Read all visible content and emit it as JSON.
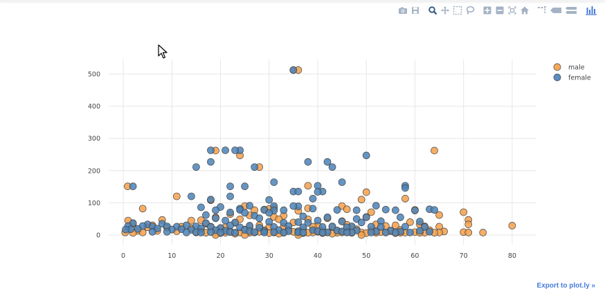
{
  "modebar": {
    "buttons": [
      {
        "icon": "camera-icon",
        "title": "Download plot as a png"
      },
      {
        "icon": "save-icon",
        "title": "Save and edit plot in cloud"
      },
      {
        "icon": "zoom-icon",
        "title": "Zoom"
      },
      {
        "icon": "pan-icon",
        "title": "Pan"
      },
      {
        "icon": "box-select-icon",
        "title": "Box Select"
      },
      {
        "icon": "lasso-select-icon",
        "title": "Lasso Select"
      },
      {
        "icon": "zoom-in-icon",
        "title": "Zoom in"
      },
      {
        "icon": "zoom-out-icon",
        "title": "Zoom out"
      },
      {
        "icon": "autoscale-icon",
        "title": "Autoscale"
      },
      {
        "icon": "home-icon",
        "title": "Reset axes"
      },
      {
        "icon": "spike-lines-icon",
        "title": "Toggle Spike Lines"
      },
      {
        "icon": "hover-closest-icon",
        "title": "Show closest data on hover"
      },
      {
        "icon": "hover-compare-icon",
        "title": "Compare data on hover"
      },
      {
        "icon": "plotly-logo-icon",
        "title": "Produced with Plotly"
      }
    ]
  },
  "export_link": "Export to plot.ly »",
  "colors": {
    "male": "#f5a04a",
    "female": "#4a82b8",
    "marker_line": "#444444",
    "grid": "#e6e6e6",
    "tick_text": "#444444",
    "modebar_icon": "#a4b3c4",
    "modebar_icon_active": "#3a5b85"
  },
  "chart_data": {
    "type": "scatter",
    "title": "",
    "xlabel": "",
    "ylabel": "",
    "xlim": [
      -3,
      85
    ],
    "ylim": [
      -30,
      545
    ],
    "xticks": [
      0,
      10,
      20,
      30,
      40,
      50,
      60,
      70,
      80
    ],
    "yticks": [
      0,
      100,
      200,
      300,
      400,
      500
    ],
    "grid": true,
    "legend_position": "top-right",
    "series": [
      {
        "name": "male",
        "points": [
          [
            35,
            512
          ],
          [
            36,
            512
          ],
          [
            64,
            262
          ],
          [
            19,
            262
          ],
          [
            24,
            247
          ],
          [
            28,
            211
          ],
          [
            38,
            153
          ],
          [
            0.9,
            151
          ],
          [
            50,
            133
          ],
          [
            11,
            120
          ],
          [
            58,
            113
          ],
          [
            49,
            110
          ],
          [
            18,
            108
          ],
          [
            45,
            90
          ],
          [
            31,
            83
          ],
          [
            4,
            82
          ],
          [
            25,
            90
          ],
          [
            30,
            81
          ],
          [
            29,
            79
          ],
          [
            38,
            83
          ],
          [
            70,
            71
          ],
          [
            46,
            80
          ],
          [
            36,
            75
          ],
          [
            27,
            77
          ],
          [
            60,
            78
          ],
          [
            51,
            71
          ],
          [
            22,
            65
          ],
          [
            33,
            60
          ],
          [
            31,
            56
          ],
          [
            26,
            61
          ],
          [
            65,
            62
          ],
          [
            19,
            55
          ],
          [
            42,
            52
          ],
          [
            50,
            56
          ],
          [
            8,
            47
          ],
          [
            38,
            49
          ],
          [
            14,
            45
          ],
          [
            1,
            45
          ],
          [
            71,
            47
          ],
          [
            59,
            40
          ],
          [
            24,
            49
          ],
          [
            32,
            49
          ],
          [
            16,
            46
          ],
          [
            45,
            43
          ],
          [
            23,
            38
          ],
          [
            35,
            39
          ],
          [
            46,
            32
          ],
          [
            52,
            33
          ],
          [
            61,
            33
          ],
          [
            40,
            30
          ],
          [
            17,
            35
          ],
          [
            28,
            30
          ],
          [
            2,
            35
          ],
          [
            6,
            30
          ],
          [
            54,
            28
          ],
          [
            62,
            27
          ],
          [
            65,
            26
          ],
          [
            56,
            30
          ],
          [
            71,
            33
          ],
          [
            12,
            26
          ],
          [
            80,
            29
          ],
          [
            21,
            24
          ],
          [
            33,
            26
          ],
          [
            39,
            26
          ],
          [
            47,
            24
          ],
          [
            30,
            25
          ],
          [
            18,
            26
          ],
          [
            26,
            26
          ],
          [
            43,
            25
          ],
          [
            5,
            24
          ],
          [
            9,
            23
          ],
          [
            14,
            21
          ],
          [
            20,
            18
          ],
          [
            25,
            17
          ],
          [
            37,
            17
          ],
          [
            48,
            18
          ],
          [
            57,
            16
          ],
          [
            63,
            15
          ],
          [
            66,
            11
          ],
          [
            29,
            15
          ],
          [
            34,
            16
          ],
          [
            41,
            14
          ],
          [
            44,
            13
          ],
          [
            51,
            14
          ],
          [
            55,
            12
          ],
          [
            3,
            13
          ],
          [
            7,
            13
          ],
          [
            11,
            12
          ],
          [
            16,
            13
          ],
          [
            22,
            11
          ],
          [
            28,
            10
          ],
          [
            35,
            10
          ],
          [
            40,
            10
          ],
          [
            46,
            9
          ],
          [
            53,
            9
          ],
          [
            60,
            9
          ],
          [
            70,
            9
          ],
          [
            74,
            7.5
          ],
          [
            0.4,
            8
          ],
          [
            4,
            8
          ],
          [
            15,
            8
          ],
          [
            19,
            7.5
          ],
          [
            24,
            8
          ],
          [
            27,
            8
          ],
          [
            31,
            8
          ],
          [
            36,
            7.5
          ],
          [
            39,
            7.5
          ],
          [
            42,
            8
          ],
          [
            45,
            7.8
          ],
          [
            49,
            8
          ],
          [
            54,
            7.8
          ],
          [
            58,
            7.5
          ],
          [
            62,
            7.3
          ],
          [
            65,
            7.8
          ],
          [
            71,
            7.8
          ],
          [
            17,
            7.2
          ],
          [
            21,
            7.2
          ],
          [
            26,
            7.2
          ],
          [
            33,
            7.2
          ],
          [
            38,
            7.2
          ],
          [
            44,
            7.2
          ],
          [
            47,
            6.9
          ],
          [
            52,
            7.2
          ],
          [
            57,
            7.0
          ],
          [
            61,
            7.2
          ],
          [
            64,
            7.2
          ],
          [
            2,
            6.5
          ],
          [
            20,
            6
          ],
          [
            30,
            6
          ],
          [
            37,
            6
          ],
          [
            41,
            6
          ],
          [
            50,
            6
          ],
          [
            56,
            6
          ],
          [
            25,
            0
          ],
          [
            19,
            0
          ],
          [
            36,
            0
          ],
          [
            49,
            0
          ],
          [
            32,
            4
          ],
          [
            23,
            4
          ],
          [
            43,
            4
          ]
        ]
      },
      {
        "name": "female",
        "points": [
          [
            35,
            512
          ],
          [
            50,
            247
          ],
          [
            18,
            263
          ],
          [
            21,
            263
          ],
          [
            24,
            263
          ],
          [
            23,
            263
          ],
          [
            18,
            227
          ],
          [
            38,
            227
          ],
          [
            42,
            227
          ],
          [
            15,
            211
          ],
          [
            27,
            211
          ],
          [
            43,
            211
          ],
          [
            58,
            153
          ],
          [
            58,
            146
          ],
          [
            40,
            153
          ],
          [
            45,
            164
          ],
          [
            31,
            164
          ],
          [
            25,
            151
          ],
          [
            22,
            151
          ],
          [
            2,
            151
          ],
          [
            35,
            135
          ],
          [
            36,
            135
          ],
          [
            41,
            135
          ],
          [
            40,
            134
          ],
          [
            22,
            120
          ],
          [
            14,
            120
          ],
          [
            39,
            113
          ],
          [
            18,
            110
          ],
          [
            30,
            109
          ],
          [
            31,
            90
          ],
          [
            26,
            91
          ],
          [
            36,
            89
          ],
          [
            35,
            90
          ],
          [
            16,
            86
          ],
          [
            20,
            87
          ],
          [
            52,
            91
          ],
          [
            56,
            77
          ],
          [
            48,
            77
          ],
          [
            63,
            80
          ],
          [
            64,
            78
          ],
          [
            54,
            79
          ],
          [
            31,
            76
          ],
          [
            24,
            82
          ],
          [
            24,
            78
          ],
          [
            39,
            82
          ],
          [
            44,
            78
          ],
          [
            60,
            76
          ],
          [
            19,
            77
          ],
          [
            29,
            78
          ],
          [
            33,
            77
          ],
          [
            22,
            70
          ],
          [
            30,
            69
          ],
          [
            25,
            69
          ],
          [
            17,
            62
          ],
          [
            27,
            60
          ],
          [
            37,
            58
          ],
          [
            42,
            55
          ],
          [
            50,
            55
          ],
          [
            48,
            50
          ],
          [
            57,
            55
          ],
          [
            19,
            52
          ],
          [
            28,
            52
          ],
          [
            21,
            45
          ],
          [
            30,
            41
          ],
          [
            36,
            40
          ],
          [
            40,
            45
          ],
          [
            45,
            42
          ],
          [
            53,
            43
          ],
          [
            61,
            42
          ],
          [
            23,
            39
          ],
          [
            33,
            38
          ],
          [
            38,
            38
          ],
          [
            49,
            39
          ],
          [
            17,
            37
          ],
          [
            8,
            35
          ],
          [
            2,
            37
          ],
          [
            5,
            33
          ],
          [
            13,
            30
          ],
          [
            4,
            28
          ],
          [
            1,
            28
          ],
          [
            9,
            27
          ],
          [
            15,
            27
          ],
          [
            11,
            26
          ],
          [
            6,
            26
          ],
          [
            22,
            30
          ],
          [
            26,
            29
          ],
          [
            34,
            28
          ],
          [
            43,
            27
          ],
          [
            47,
            27
          ],
          [
            51,
            26
          ],
          [
            31,
            25
          ],
          [
            37,
            24
          ],
          [
            41,
            25
          ],
          [
            46,
            24
          ],
          [
            53,
            25
          ],
          [
            58,
            26
          ],
          [
            62,
            25
          ],
          [
            18,
            25
          ],
          [
            24,
            24
          ],
          [
            28,
            23
          ],
          [
            20,
            22
          ],
          [
            16,
            21
          ],
          [
            7,
            20
          ],
          [
            3,
            19
          ],
          [
            1.5,
            18
          ],
          [
            0.5,
            17
          ],
          [
            10,
            17
          ],
          [
            12,
            18
          ],
          [
            14,
            16
          ],
          [
            19,
            15
          ],
          [
            25,
            16
          ],
          [
            32,
            15
          ],
          [
            39,
            15
          ],
          [
            44,
            14
          ],
          [
            48,
            14
          ],
          [
            55,
            14
          ],
          [
            61,
            13
          ],
          [
            21,
            13
          ],
          [
            26,
            12
          ],
          [
            29,
            12
          ],
          [
            34,
            12
          ],
          [
            36,
            12
          ],
          [
            40,
            12
          ],
          [
            45,
            11
          ],
          [
            52,
            11
          ],
          [
            57,
            11
          ],
          [
            63,
            10
          ],
          [
            6,
            10
          ],
          [
            9,
            10
          ],
          [
            15,
            9
          ],
          [
            18,
            9
          ],
          [
            22,
            9
          ],
          [
            27,
            9
          ],
          [
            31,
            9
          ],
          [
            36,
            8.5
          ],
          [
            42,
            8.5
          ],
          [
            47,
            8
          ],
          [
            54,
            8
          ],
          [
            59,
            8
          ],
          [
            13,
            8
          ],
          [
            16,
            7.5
          ],
          [
            20,
            7.5
          ],
          [
            23,
            7.5
          ],
          [
            29,
            7.8
          ],
          [
            33,
            7.8
          ],
          [
            37,
            7.8
          ],
          [
            41,
            7.8
          ],
          [
            46,
            7.8
          ],
          [
            51,
            7.7
          ],
          [
            56,
            7.7
          ]
        ]
      }
    ]
  }
}
